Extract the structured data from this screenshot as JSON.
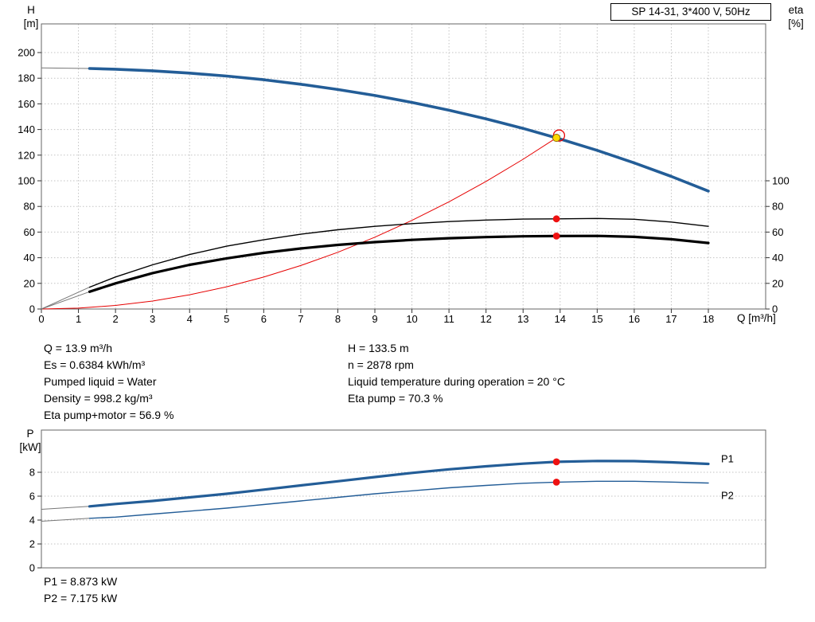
{
  "title_box": {
    "label": "SP 14-31, 3*400 V, 50Hz"
  },
  "axes_labels": {
    "h_line1": "H",
    "h_line2": "[m]",
    "eta_line1": "eta",
    "eta_line2": "[%]",
    "q_label": "Q [m³/h]",
    "p_line1": "P",
    "p_line2": "[kW]"
  },
  "info": {
    "left": [
      "Q = 13.9 m³/h",
      "Es = 0.6384 kWh/m³",
      "Pumped liquid = Water",
      "Density = 998.2 kg/m³",
      "Eta pump+motor = 56.9 %"
    ],
    "right": [
      "H = 133.5 m",
      "n = 2878 rpm",
      "Liquid temperature during operation = 20 °C",
      "Eta pump = 70.3 %"
    ]
  },
  "power_info": [
    "P1 = 8.873 kW",
    "P2 = 7.175 kW"
  ],
  "colors": {
    "curve_blue": "#235d97",
    "curve_red": "#e60000",
    "curve_black": "#000000",
    "thin_lead": "#777777",
    "grid": "#c3c3c3",
    "axis": "#666666",
    "tick": "#333333",
    "duty_yellow": "#ffd900",
    "duty_yellow_edge": "#8a6d00",
    "duty_dot_red": "#ee1111",
    "label_blue": "#235d97"
  },
  "chart_data": [
    {
      "type": "line",
      "title": "SP 14-31, 3*400 V, 50Hz",
      "xlabel": "Q [m³/h]",
      "ylabel_left": "H [m]",
      "ylabel_right": "eta [%]",
      "xlim": [
        0,
        19.55
      ],
      "x_ticks": [
        0,
        1,
        2,
        3,
        4,
        5,
        6,
        7,
        8,
        9,
        10,
        11,
        12,
        13,
        14,
        15,
        16,
        17,
        18
      ],
      "ylim_left": [
        0,
        222
      ],
      "y_ticks_left": [
        0,
        20,
        40,
        60,
        80,
        100,
        120,
        140,
        160,
        180,
        200
      ],
      "ylim_right": [
        0,
        138
      ],
      "y_ticks_right": [
        0,
        20,
        40,
        60,
        80,
        100
      ],
      "grid": true,
      "series": [
        {
          "name": "H pump curve",
          "axis": "left",
          "color_key": "curve_blue",
          "width": 3.6,
          "thin_until": 1.3,
          "x": [
            0,
            1.3,
            2,
            3,
            4,
            5,
            6,
            7,
            8,
            9,
            10,
            11,
            12,
            13,
            13.9,
            15,
            16,
            17,
            18
          ],
          "y": [
            188,
            187.6,
            187.0,
            185.8,
            184.0,
            181.7,
            178.8,
            175.3,
            171.2,
            166.5,
            161.1,
            155.0,
            148.3,
            140.9,
            133.5,
            123.7,
            113.9,
            103.4,
            92.0
          ]
        },
        {
          "name": "system curve",
          "axis": "left",
          "color_key": "curve_red",
          "width": 1,
          "x": [
            0,
            1,
            2,
            3,
            4,
            5,
            6,
            7,
            8,
            9,
            10,
            11,
            12,
            13,
            13.9
          ],
          "y": [
            0,
            0.7,
            2.8,
            6.2,
            11.1,
            17.3,
            24.9,
            33.9,
            44.2,
            56.0,
            69.1,
            83.6,
            99.5,
            116.8,
            133.5
          ]
        },
        {
          "name": "eta pump",
          "axis": "right",
          "color_key": "curve_black",
          "width": 1.4,
          "thin_until": 1.3,
          "x": [
            0,
            1.3,
            2,
            3,
            4,
            5,
            6,
            7,
            8,
            9,
            10,
            11,
            12,
            13,
            13.9,
            15,
            16,
            17,
            18
          ],
          "y": [
            0,
            17.0,
            25.0,
            34.5,
            42.5,
            49.0,
            54.0,
            58.3,
            61.8,
            64.5,
            66.6,
            68.2,
            69.4,
            70.1,
            70.3,
            70.6,
            70.0,
            67.8,
            64.5
          ]
        },
        {
          "name": "eta pump+motor",
          "axis": "right",
          "color_key": "curve_black",
          "width": 3.2,
          "thin_until": 1.3,
          "x": [
            0,
            1.3,
            2,
            3,
            4,
            5,
            6,
            7,
            8,
            9,
            10,
            11,
            12,
            13,
            13.9,
            15,
            16,
            17,
            18
          ],
          "y": [
            0,
            13.5,
            20.0,
            28.0,
            34.5,
            39.5,
            43.8,
            47.2,
            50.0,
            52.2,
            53.9,
            55.2,
            56.1,
            56.7,
            56.9,
            57.0,
            56.3,
            54.4,
            51.5
          ]
        }
      ],
      "duty_point": {
        "q": 13.9,
        "h": 133.5,
        "eta_pump": 70.3,
        "eta_pump_motor": 56.9
      }
    },
    {
      "type": "line",
      "ylabel_left": "P [kW]",
      "xlim": [
        0,
        19.55
      ],
      "ylim_left": [
        0,
        11.5
      ],
      "y_ticks_left": [
        0,
        2,
        4,
        6,
        8
      ],
      "grid": true,
      "series": [
        {
          "name": "P1",
          "color_key": "curve_blue",
          "width": 3.2,
          "thin_until": 1.3,
          "x": [
            0,
            1.3,
            2,
            3,
            4,
            5,
            6,
            7,
            8,
            9,
            10,
            11,
            12,
            13,
            13.9,
            15,
            16,
            17,
            18
          ],
          "y": [
            4.9,
            5.15,
            5.35,
            5.6,
            5.9,
            6.2,
            6.55,
            6.9,
            7.25,
            7.6,
            7.95,
            8.25,
            8.5,
            8.72,
            8.873,
            8.95,
            8.93,
            8.83,
            8.7
          ]
        },
        {
          "name": "P2",
          "color_key": "curve_blue",
          "width": 1.4,
          "thin_until": 1.3,
          "x": [
            0,
            1.3,
            2,
            3,
            4,
            5,
            6,
            7,
            8,
            9,
            10,
            11,
            12,
            13,
            13.9,
            15,
            16,
            17,
            18
          ],
          "y": [
            3.9,
            4.15,
            4.25,
            4.5,
            4.75,
            5.0,
            5.3,
            5.6,
            5.9,
            6.2,
            6.45,
            6.7,
            6.9,
            7.08,
            7.175,
            7.25,
            7.25,
            7.18,
            7.1
          ]
        }
      ],
      "duty_point": {
        "q": 13.9,
        "p1": 8.873,
        "p2": 7.175
      }
    }
  ]
}
